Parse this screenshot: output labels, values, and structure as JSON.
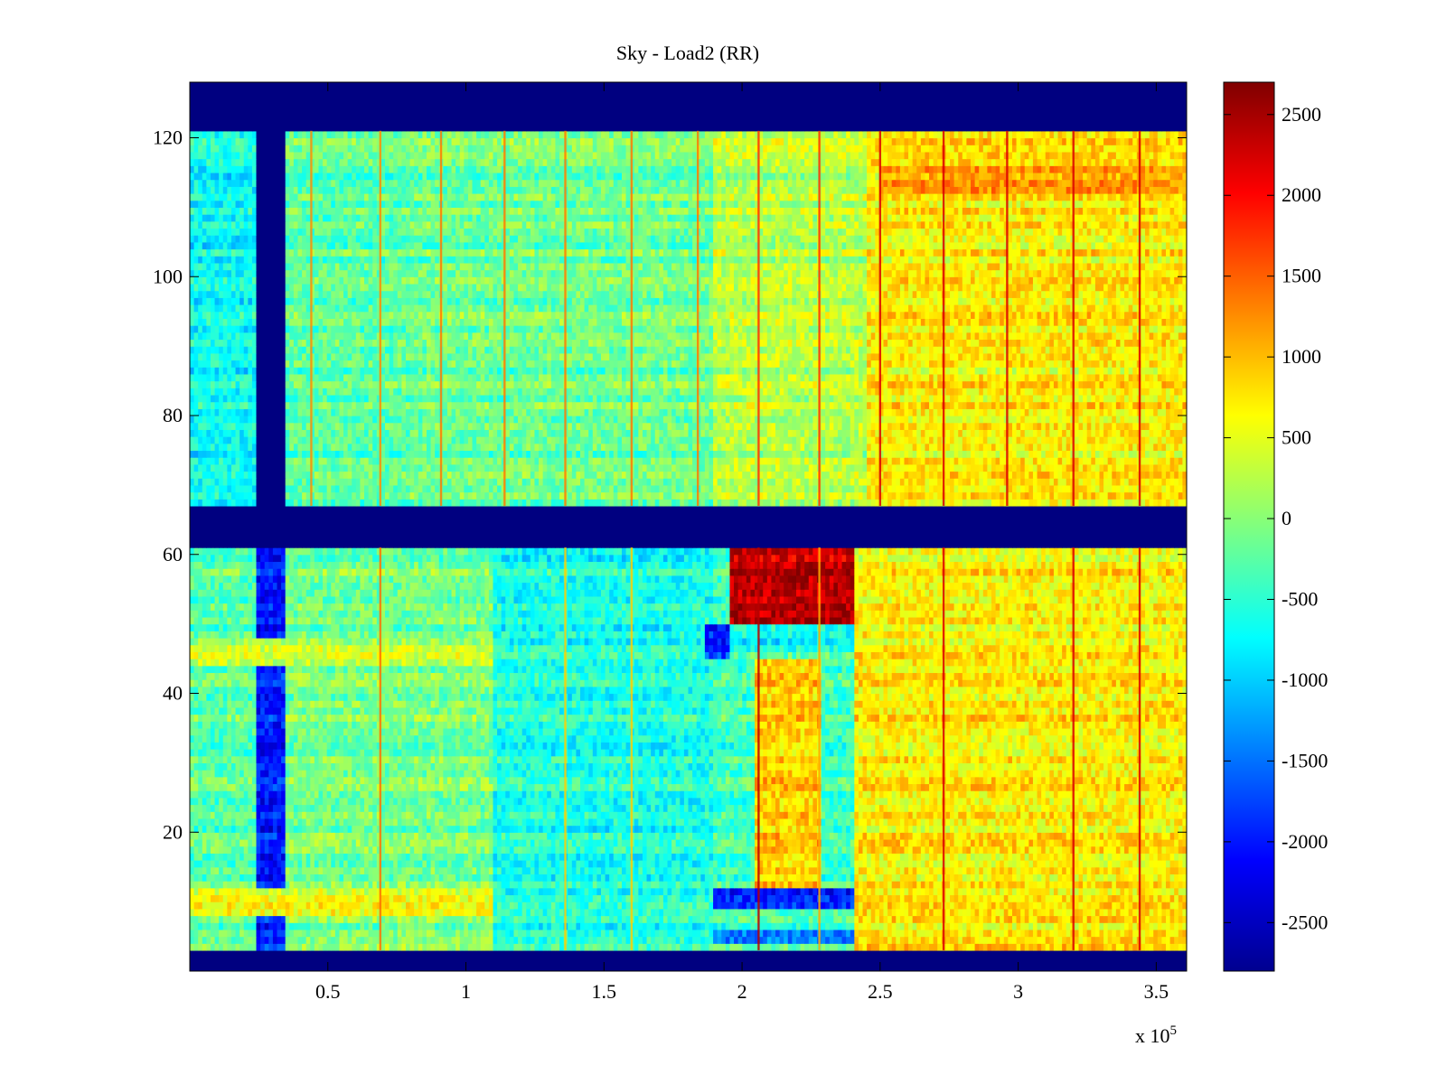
{
  "chart_data": {
    "type": "heatmap",
    "title": "Sky - Load2 (RR)",
    "xlabel": "",
    "ylabel": "",
    "x_exponent_label": "x 10",
    "x_exponent_power": "5",
    "xlim": [
      0,
      3.61
    ],
    "ylim": [
      0,
      128
    ],
    "xticks": [
      0.5,
      1,
      1.5,
      2,
      2.5,
      3,
      3.5
    ],
    "xtick_labels": [
      "0.5",
      "1",
      "1.5",
      "2",
      "2.5",
      "3",
      "3.5"
    ],
    "yticks": [
      20,
      40,
      60,
      80,
      100,
      120
    ],
    "ytick_labels": [
      "20",
      "40",
      "60",
      "80",
      "100",
      "120"
    ],
    "colormap": "jet",
    "clim": [
      -2800,
      2700
    ],
    "colorbar_ticks": [
      2500,
      2000,
      1500,
      1000,
      500,
      0,
      -500,
      -1000,
      -1500,
      -2000,
      -2500
    ],
    "colorbar_tick_labels": [
      "2500",
      "2000",
      "1500",
      "1000",
      "500",
      "0",
      "-500",
      "-1000",
      "-1500",
      "-2000",
      "-2500"
    ],
    "masked_rows": [
      [
        0,
        3
      ],
      [
        61,
        67
      ],
      [
        121,
        128
      ]
    ],
    "masked_columns": [
      {
        "x": [
          0.24,
          0.35
        ],
        "y": [
          67,
          121
        ]
      }
    ],
    "regions": [
      {
        "x": [
          0,
          0.24
        ],
        "y": [
          67,
          121
        ],
        "value": -700
      },
      {
        "x": [
          0.35,
          0.8
        ],
        "y": [
          67,
          121
        ],
        "value": -250
      },
      {
        "x": [
          0.8,
          1.9
        ],
        "y": [
          67,
          121
        ],
        "value": -150
      },
      {
        "x": [
          1.9,
          2.45
        ],
        "y": [
          67,
          121
        ],
        "value": 250
      },
      {
        "x": [
          2.45,
          3.61
        ],
        "y": [
          67,
          121
        ],
        "value": 700
      },
      {
        "x": [
          2.5,
          3.61
        ],
        "y": [
          112,
          116
        ],
        "value": 1300
      },
      {
        "x": [
          0,
          0.24
        ],
        "y": [
          3,
          61
        ],
        "value": -250
      },
      {
        "x": [
          0.24,
          0.35
        ],
        "y": [
          3,
          61
        ],
        "value": -2000
      },
      {
        "x": [
          0.35,
          1.1
        ],
        "y": [
          3,
          61
        ],
        "value": -100
      },
      {
        "x": [
          1.1,
          1.9
        ],
        "y": [
          3,
          61
        ],
        "value": -600
      },
      {
        "x": [
          1.9,
          2.4
        ],
        "y": [
          3,
          61
        ],
        "value": -400
      },
      {
        "x": [
          2.4,
          3.61
        ],
        "y": [
          3,
          61
        ],
        "value": 700
      },
      {
        "x": [
          0,
          1.1
        ],
        "y": [
          8,
          12
        ],
        "value": 500
      },
      {
        "x": [
          0,
          1.1
        ],
        "y": [
          44,
          48
        ],
        "value": 300
      },
      {
        "x": [
          1.9,
          2.4
        ],
        "y": [
          9,
          12
        ],
        "value": -2000
      },
      {
        "x": [
          1.9,
          2.4
        ],
        "y": [
          4,
          6
        ],
        "value": -1500
      },
      {
        "x": [
          2.05,
          2.28
        ],
        "y": [
          12,
          45
        ],
        "value": 900
      },
      {
        "x": [
          1.95,
          2.4
        ],
        "y": [
          46,
          49
        ],
        "value": -700
      },
      {
        "x": [
          1.87,
          1.95
        ],
        "y": [
          45,
          50
        ],
        "value": -1900
      },
      {
        "x": [
          1.95,
          2.4
        ],
        "y": [
          50,
          61
        ],
        "value": 2400
      }
    ],
    "vertical_streaks": {
      "upper_x": [
        0.44,
        0.69,
        0.91,
        1.14,
        1.36,
        1.6,
        1.84,
        2.06,
        2.28,
        2.5,
        2.73,
        2.96,
        3.2,
        3.44
      ],
      "lower_x": [
        0.69,
        1.36,
        1.6,
        2.06,
        2.28,
        2.73,
        3.2,
        3.44
      ],
      "value_offset": 1500
    }
  }
}
